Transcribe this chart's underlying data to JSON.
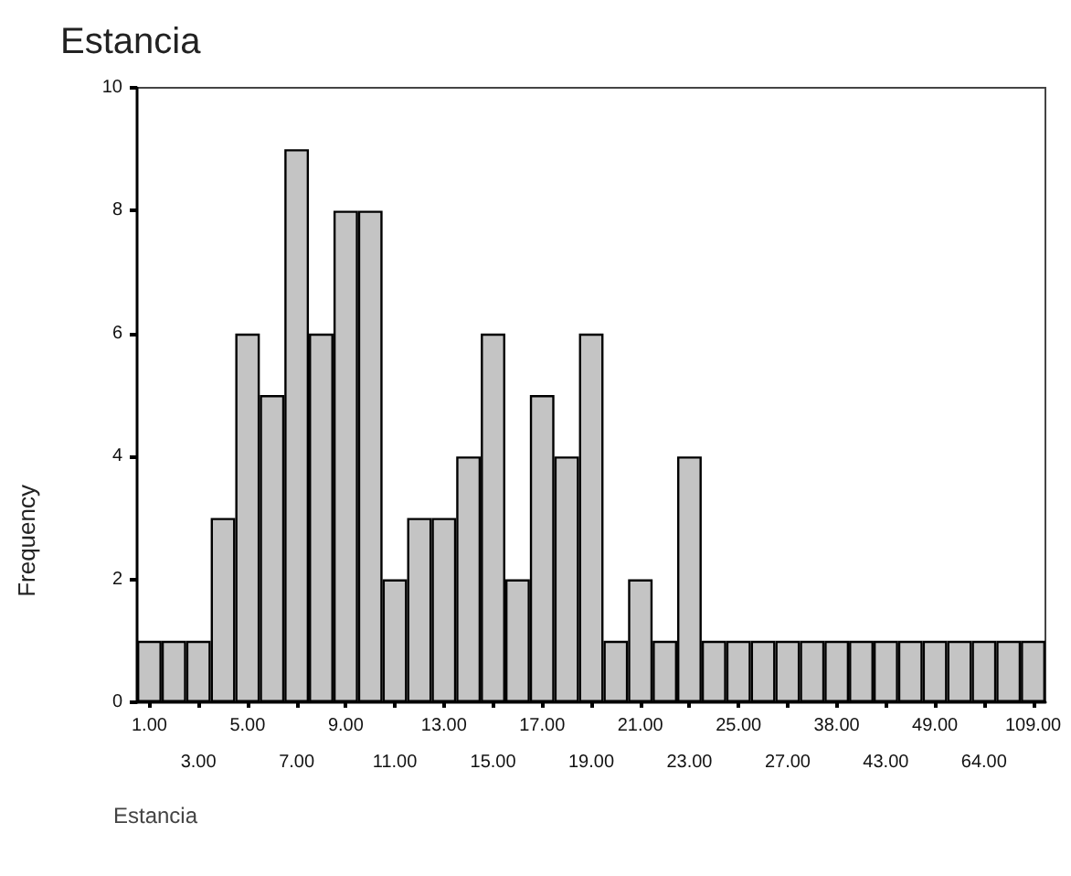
{
  "chart_data": {
    "type": "bar",
    "title": "Estancia",
    "xlabel": "Estancia",
    "ylabel": "Frequency",
    "categories": [
      "1.00",
      null,
      "3.00",
      null,
      "5.00",
      null,
      "7.00",
      null,
      "9.00",
      null,
      "11.00",
      null,
      "13.00",
      null,
      "15.00",
      null,
      "17.00",
      null,
      "19.00",
      null,
      "21.00",
      null,
      "23.00",
      null,
      "25.00",
      null,
      "27.00",
      null,
      "38.00",
      null,
      "43.00",
      null,
      "49.00",
      null,
      "64.00",
      null,
      "109.00"
    ],
    "values": [
      1,
      1,
      1,
      3,
      6,
      5,
      9,
      6,
      8,
      8,
      2,
      3,
      3,
      4,
      6,
      2,
      5,
      4,
      6,
      1,
      2,
      1,
      4,
      1,
      1,
      1,
      1,
      1,
      1,
      1,
      1,
      1,
      1,
      1,
      1,
      1,
      1
    ],
    "color": "#c4c4c4",
    "ylim": [
      0,
      10
    ],
    "yticks": [
      0,
      2,
      4,
      6,
      8,
      10
    ],
    "grid": false
  }
}
